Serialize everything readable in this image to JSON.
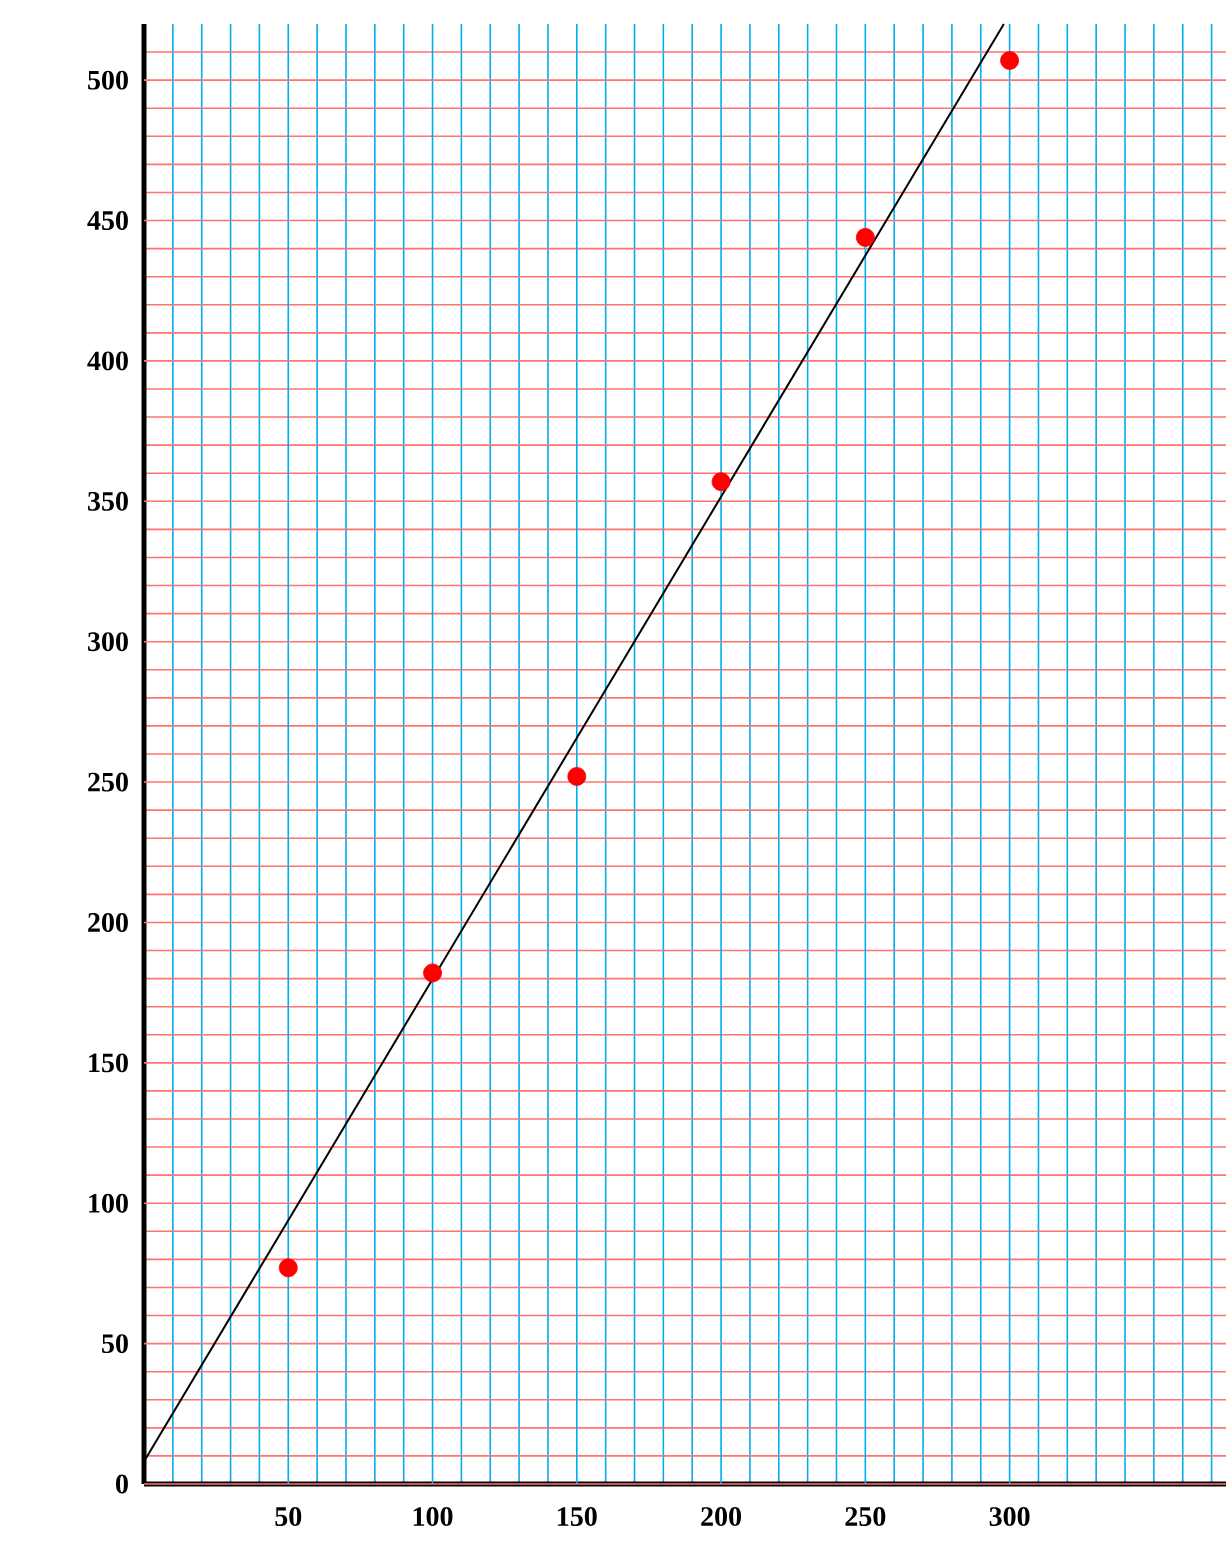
{
  "chart_data": {
    "type": "scatter",
    "xlim": [
      0,
      375
    ],
    "ylim": [
      0,
      520
    ],
    "xticks": [
      {
        "value": 10,
        "label": null
      },
      {
        "value": 20,
        "label": null
      },
      {
        "value": 30,
        "label": null
      },
      {
        "value": 40,
        "label": null
      },
      50,
      {
        "value": 60,
        "label": null
      },
      {
        "value": 70,
        "label": null
      },
      {
        "value": 80,
        "label": null
      },
      {
        "value": 90,
        "label": null
      },
      100,
      {
        "value": 110,
        "label": null
      },
      {
        "value": 120,
        "label": null
      },
      {
        "value": 130,
        "label": null
      },
      {
        "value": 140,
        "label": null
      },
      150,
      {
        "value": 160,
        "label": null
      },
      {
        "value": 170,
        "label": null
      },
      {
        "value": 180,
        "label": null
      },
      {
        "value": 190,
        "label": null
      },
      200,
      {
        "value": 210,
        "label": null
      },
      {
        "value": 220,
        "label": null
      },
      {
        "value": 230,
        "label": null
      },
      {
        "value": 240,
        "label": null
      },
      250,
      {
        "value": 260,
        "label": null
      },
      {
        "value": 270,
        "label": null
      },
      {
        "value": 280,
        "label": null
      },
      {
        "value": 290,
        "label": null
      },
      300,
      {
        "value": 310,
        "label": null
      },
      {
        "value": 320,
        "label": null
      },
      {
        "value": 330,
        "label": null
      },
      {
        "value": 340,
        "label": null
      },
      {
        "value": 350,
        "label": null
      },
      {
        "value": 360,
        "label": null
      },
      {
        "value": 370,
        "label": null
      }
    ],
    "yticks": [
      0,
      {
        "value": 10,
        "label": null
      },
      {
        "value": 20,
        "label": null
      },
      {
        "value": 30,
        "label": null
      },
      {
        "value": 40,
        "label": null
      },
      50,
      {
        "value": 60,
        "label": null
      },
      {
        "value": 70,
        "label": null
      },
      {
        "value": 80,
        "label": null
      },
      {
        "value": 90,
        "label": null
      },
      100,
      {
        "value": 110,
        "label": null
      },
      {
        "value": 120,
        "label": null
      },
      {
        "value": 130,
        "label": null
      },
      {
        "value": 140,
        "label": null
      },
      150,
      {
        "value": 160,
        "label": null
      },
      {
        "value": 170,
        "label": null
      },
      {
        "value": 180,
        "label": null
      },
      {
        "value": 190,
        "label": null
      },
      200,
      {
        "value": 210,
        "label": null
      },
      {
        "value": 220,
        "label": null
      },
      {
        "value": 230,
        "label": null
      },
      {
        "value": 240,
        "label": null
      },
      250,
      {
        "value": 260,
        "label": null
      },
      {
        "value": 270,
        "label": null
      },
      {
        "value": 280,
        "label": null
      },
      {
        "value": 290,
        "label": null
      },
      300,
      {
        "value": 310,
        "label": null
      },
      {
        "value": 320,
        "label": null
      },
      {
        "value": 330,
        "label": null
      },
      {
        "value": 340,
        "label": null
      },
      350,
      {
        "value": 360,
        "label": null
      },
      {
        "value": 370,
        "label": null
      },
      {
        "value": 380,
        "label": null
      },
      {
        "value": 390,
        "label": null
      },
      400,
      {
        "value": 410,
        "label": null
      },
      {
        "value": 420,
        "label": null
      },
      {
        "value": 430,
        "label": null
      },
      {
        "value": 440,
        "label": null
      },
      450,
      {
        "value": 460,
        "label": null
      },
      {
        "value": 470,
        "label": null
      },
      {
        "value": 480,
        "label": null
      },
      {
        "value": 490,
        "label": null
      },
      500,
      {
        "value": 510,
        "label": null
      }
    ],
    "grid": true,
    "marker": "circle",
    "series": [
      {
        "type": "scatter",
        "color": "#ff0000",
        "x": [
          50,
          100,
          150,
          200,
          250,
          300
        ],
        "values": [
          77,
          182,
          252,
          357,
          444,
          507
        ]
      },
      {
        "type": "line",
        "color": "#000000",
        "marker": "none",
        "x": [
          0,
          298
        ],
        "values": [
          8,
          520
        ]
      }
    ]
  }
}
